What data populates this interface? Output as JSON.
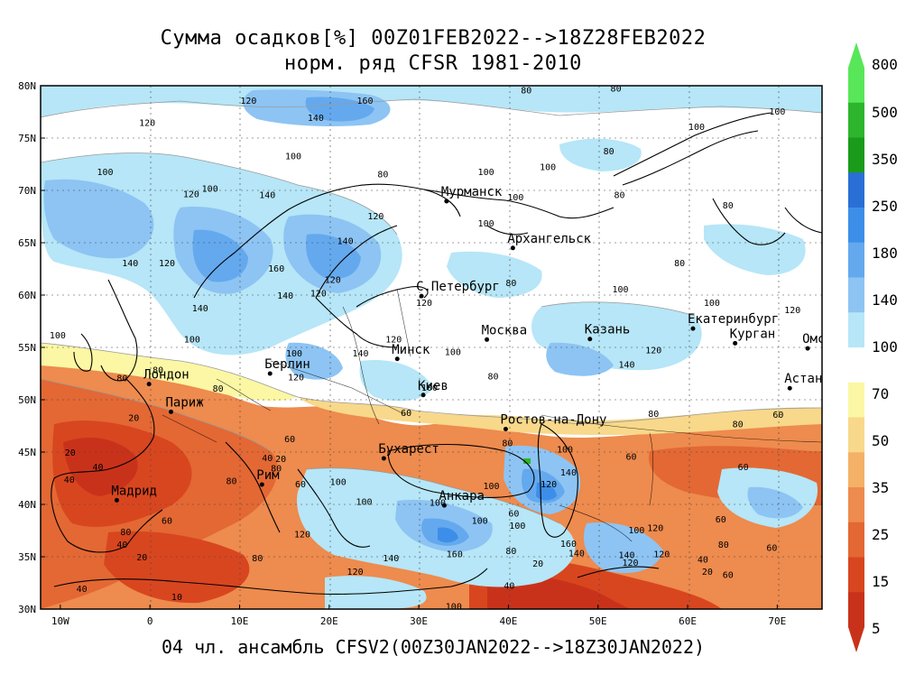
{
  "title": {
    "line1": "Сумма осадков[%] 00Z01FEB2022-->18Z28FEB2022",
    "line2": "норм. ряд CFSR 1981-2010"
  },
  "footer": "04 чл. ансамбль CFSV2(00Z30JAN2022-->18Z30JAN2022)",
  "map": {
    "lat_labels": [
      "80N",
      "75N",
      "70N",
      "65N",
      "60N",
      "55N",
      "50N",
      "45N",
      "40N",
      "35N",
      "30N"
    ],
    "lon_labels": [
      "10W",
      "0",
      "10E",
      "20E",
      "30E",
      "40E",
      "50E",
      "60E",
      "70E"
    ],
    "cities": [
      {
        "name": "Мурманск",
        "lon": 33.1,
        "lat": 68.97
      },
      {
        "name": "Архангельск",
        "lon": 40.5,
        "lat": 64.5
      },
      {
        "name": "С.Петербург",
        "lon": 30.3,
        "lat": 59.9
      },
      {
        "name": "Москва",
        "lon": 37.6,
        "lat": 55.75
      },
      {
        "name": "Казань",
        "lon": 49.1,
        "lat": 55.8
      },
      {
        "name": "Екатеринбург",
        "lon": 60.6,
        "lat": 56.8
      },
      {
        "name": "Курган",
        "lon": 65.3,
        "lat": 55.4
      },
      {
        "name": "Омск",
        "lon": 73.4,
        "lat": 54.9
      },
      {
        "name": "Астана",
        "lon": 71.4,
        "lat": 51.1
      },
      {
        "name": "Минск",
        "lon": 27.6,
        "lat": 53.9
      },
      {
        "name": "Берлин",
        "lon": 13.4,
        "lat": 52.5
      },
      {
        "name": "Лондон",
        "lon": -0.1,
        "lat": 51.5
      },
      {
        "name": "Париж",
        "lon": 2.35,
        "lat": 48.85
      },
      {
        "name": "Киев",
        "lon": 30.5,
        "lat": 50.45
      },
      {
        "name": "Ростов-на-Дону",
        "lon": 39.7,
        "lat": 47.2
      },
      {
        "name": "Бухарест",
        "lon": 26.1,
        "lat": 44.4
      },
      {
        "name": "Рим",
        "lon": 12.5,
        "lat": 41.9
      },
      {
        "name": "Мадрид",
        "lon": -3.7,
        "lat": 40.4
      },
      {
        "name": "Анкара",
        "lon": 32.85,
        "lat": 39.9
      }
    ],
    "contour_labels": [
      {
        "v": "120",
        "lon": 11,
        "lat": 78.6
      },
      {
        "v": "160",
        "lon": 24,
        "lat": 78.6
      },
      {
        "v": "140",
        "lon": 18.5,
        "lat": 77
      },
      {
        "v": "120",
        "lon": -0.3,
        "lat": 76.5
      },
      {
        "v": "80",
        "lon": 42,
        "lat": 79.6
      },
      {
        "v": "80",
        "lon": 52,
        "lat": 79.8
      },
      {
        "v": "100",
        "lon": 61,
        "lat": 76.1
      },
      {
        "v": "100",
        "lon": 70,
        "lat": 77.6
      },
      {
        "v": "100",
        "lon": -5,
        "lat": 71.8
      },
      {
        "v": "100",
        "lon": 16,
        "lat": 73.3
      },
      {
        "v": "100",
        "lon": 37.5,
        "lat": 71.8
      },
      {
        "v": "80",
        "lon": 26,
        "lat": 71.6
      },
      {
        "v": "80",
        "lon": 51.2,
        "lat": 73.8
      },
      {
        "v": "100",
        "lon": 44.4,
        "lat": 72.3
      },
      {
        "v": "120",
        "lon": 4.6,
        "lat": 69.7
      },
      {
        "v": "100",
        "lon": 6.7,
        "lat": 70.2
      },
      {
        "v": "140",
        "lon": 13.1,
        "lat": 69.6
      },
      {
        "v": "100",
        "lon": 40.8,
        "lat": 69.4
      },
      {
        "v": "80",
        "lon": 52.4,
        "lat": 69.6
      },
      {
        "v": "80",
        "lon": 64.5,
        "lat": 68.6
      },
      {
        "v": "120",
        "lon": 25.2,
        "lat": 67.6
      },
      {
        "v": "100",
        "lon": 37.5,
        "lat": 66.9
      },
      {
        "v": "140",
        "lon": 21.8,
        "lat": 65.2
      },
      {
        "v": "140",
        "lon": -2.2,
        "lat": 63.1
      },
      {
        "v": "120",
        "lon": 1.9,
        "lat": 63.1
      },
      {
        "v": "160",
        "lon": 14.1,
        "lat": 62.6
      },
      {
        "v": "120",
        "lon": 18.8,
        "lat": 60.2
      },
      {
        "v": "140",
        "lon": 15.1,
        "lat": 60.0
      },
      {
        "v": "120",
        "lon": 20.4,
        "lat": 61.5
      },
      {
        "v": "80",
        "lon": 59.1,
        "lat": 63.1
      },
      {
        "v": "80",
        "lon": 40.3,
        "lat": 61.2
      },
      {
        "v": "100",
        "lon": 52.5,
        "lat": 60.6
      },
      {
        "v": "100",
        "lon": 62.7,
        "lat": 59.3
      },
      {
        "v": "120",
        "lon": 71.7,
        "lat": 58.6
      },
      {
        "v": "120",
        "lon": 30.6,
        "lat": 59.3
      },
      {
        "v": "140",
        "lon": 5.6,
        "lat": 58.8
      },
      {
        "v": "100",
        "lon": -10.3,
        "lat": 56.2
      },
      {
        "v": "100",
        "lon": 4.7,
        "lat": 55.8
      },
      {
        "v": "100",
        "lon": 16.1,
        "lat": 54.5
      },
      {
        "v": "140",
        "lon": 23.5,
        "lat": 54.5
      },
      {
        "v": "100",
        "lon": 33.8,
        "lat": 54.6
      },
      {
        "v": "120",
        "lon": 27.2,
        "lat": 55.8
      },
      {
        "v": "140",
        "lon": 53.2,
        "lat": 53.4
      },
      {
        "v": "120",
        "lon": 56.2,
        "lat": 54.8
      },
      {
        "v": "80",
        "lon": 38.3,
        "lat": 52.3
      },
      {
        "v": "80",
        "lon": -3.1,
        "lat": 52.1
      },
      {
        "v": "80",
        "lon": 0.9,
        "lat": 52.9
      },
      {
        "v": "80",
        "lon": 7.6,
        "lat": 51.1
      },
      {
        "v": "120",
        "lon": 16.3,
        "lat": 52.2
      },
      {
        "v": "100",
        "lon": 31.2,
        "lat": 51.2
      },
      {
        "v": "60",
        "lon": 28.6,
        "lat": 48.8
      },
      {
        "v": "80",
        "lon": 56.2,
        "lat": 48.7
      },
      {
        "v": "80",
        "lon": 65.6,
        "lat": 47.7
      },
      {
        "v": "60",
        "lon": 70.1,
        "lat": 48.6
      },
      {
        "v": "20",
        "lon": -1.8,
        "lat": 48.3
      },
      {
        "v": "60",
        "lon": 15.6,
        "lat": 46.3
      },
      {
        "v": "40",
        "lon": 13.1,
        "lat": 44.5
      },
      {
        "v": "80",
        "lon": 14.1,
        "lat": 43.5
      },
      {
        "v": "80",
        "lon": 39.9,
        "lat": 45.9
      },
      {
        "v": "100",
        "lon": 46.3,
        "lat": 45.3
      },
      {
        "v": "60",
        "lon": 53.7,
        "lat": 44.6
      },
      {
        "v": "60",
        "lon": 66.2,
        "lat": 43.6
      },
      {
        "v": "40",
        "lon": -5.8,
        "lat": 43.6
      },
      {
        "v": "40",
        "lon": -9.0,
        "lat": 42.4
      },
      {
        "v": "80",
        "lon": 9.1,
        "lat": 42.3
      },
      {
        "v": "60",
        "lon": 16.8,
        "lat": 42.0
      },
      {
        "v": "100",
        "lon": 38.1,
        "lat": 41.8
      },
      {
        "v": "120",
        "lon": 44.5,
        "lat": 42.0
      },
      {
        "v": "140",
        "lon": 46.7,
        "lat": 43.1
      },
      {
        "v": "60",
        "lon": 40.6,
        "lat": 39.2
      },
      {
        "v": "100",
        "lon": 54.3,
        "lat": 37.6
      },
      {
        "v": "120",
        "lon": 56.4,
        "lat": 37.8
      },
      {
        "v": "60",
        "lon": 63.7,
        "lat": 38.6
      },
      {
        "v": "80",
        "lon": -2.7,
        "lat": 37.4
      },
      {
        "v": "60",
        "lon": 1.9,
        "lat": 38.5
      },
      {
        "v": "120",
        "lon": 17.0,
        "lat": 37.2
      },
      {
        "v": "100",
        "lon": 36.8,
        "lat": 38.5
      },
      {
        "v": "160",
        "lon": 46.7,
        "lat": 36.3
      },
      {
        "v": "40",
        "lon": -3.1,
        "lat": 36.2
      },
      {
        "v": "20",
        "lon": -0.9,
        "lat": 35.0
      },
      {
        "v": "80",
        "lon": 12.0,
        "lat": 34.9
      },
      {
        "v": "140",
        "lon": 47.6,
        "lat": 35.4
      },
      {
        "v": "140",
        "lon": 53.2,
        "lat": 35.2
      },
      {
        "v": "120",
        "lon": 57.1,
        "lat": 35.3
      },
      {
        "v": "120",
        "lon": 53.6,
        "lat": 34.5
      },
      {
        "v": "40",
        "lon": 61.7,
        "lat": 34.8
      },
      {
        "v": "80",
        "lon": 64.0,
        "lat": 36.2
      },
      {
        "v": "60",
        "lon": 69.4,
        "lat": 35.9
      },
      {
        "v": "20",
        "lon": 62.2,
        "lat": 33.6
      },
      {
        "v": "60",
        "lon": 64.5,
        "lat": 33.3
      },
      {
        "v": "120",
        "lon": 22.9,
        "lat": 33.6
      },
      {
        "v": "140",
        "lon": 26.9,
        "lat": 34.9
      },
      {
        "v": "160",
        "lon": 34.0,
        "lat": 35.3
      },
      {
        "v": "80",
        "lon": 40.3,
        "lat": 35.6
      },
      {
        "v": "20",
        "lon": 43.3,
        "lat": 34.4
      },
      {
        "v": "40",
        "lon": 40.1,
        "lat": 32.3
      },
      {
        "v": "40",
        "lon": -7.6,
        "lat": 32.0
      },
      {
        "v": "10",
        "lon": 3.0,
        "lat": 31.2
      },
      {
        "v": "100",
        "lon": 33.9,
        "lat": 30.3
      },
      {
        "v": "100",
        "lon": 41.0,
        "lat": 38.0
      },
      {
        "v": "100",
        "lon": 32.1,
        "lat": 40.2
      },
      {
        "v": "20",
        "lon": -8.9,
        "lat": 45.0
      },
      {
        "v": "20",
        "lon": 14.6,
        "lat": 44.4
      },
      {
        "v": "100",
        "lon": 23.9,
        "lat": 40.3
      },
      {
        "v": "100",
        "lon": 21.0,
        "lat": 42.2
      }
    ]
  },
  "colorbar": {
    "labels": [
      "800",
      "500",
      "350",
      "250",
      "180",
      "140",
      "100",
      "70",
      "50",
      "35",
      "25",
      "15",
      "5"
    ],
    "colors": [
      "#58e758",
      "#2db52d",
      "#1a9b1a",
      "#2a6fd6",
      "#3d8ee8",
      "#64a9ee",
      "#8dc4f3",
      "#b6e6f7",
      "#ffffff",
      "#fbf7a4",
      "#f8d88a",
      "#f4b167",
      "#ee8b4e",
      "#e36834",
      "#d8461f",
      "#c9321a"
    ]
  }
}
